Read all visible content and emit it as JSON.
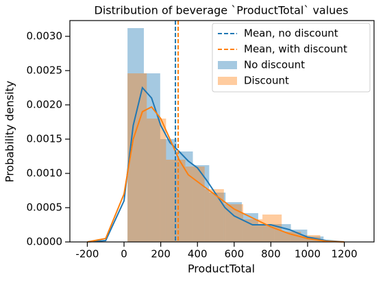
{
  "chart_data": {
    "type": "histogram",
    "title": "Distribution of beverage `ProductTotal` values",
    "xlabel": "ProductTotal",
    "ylabel": "Probability density",
    "xlim": [
      -295,
      1362
    ],
    "ylim": [
      0,
      0.00323
    ],
    "xticks": [
      -200,
      0,
      200,
      400,
      600,
      800,
      1000,
      1200
    ],
    "yticks": [
      {
        "value": 0,
        "label": "0.0000"
      },
      0.0005,
      {
        "value": 0.001,
        "label": "0.0010"
      },
      0.0015,
      {
        "value": 0.002,
        "label": "0.0020"
      },
      0.0025,
      {
        "value": 0.003,
        "label": "0.0030"
      }
    ],
    "legend": "upper right",
    "series": [
      {
        "name": "No discount",
        "color": "#1f77b4",
        "bins": [
          19,
          108,
          197,
          286,
          375,
          464,
          553,
          642,
          731,
          820,
          909,
          998,
          1087
        ],
        "values": [
          0.00312,
          0.00246,
          0.0015,
          0.00132,
          0.00112,
          0.00072,
          0.00058,
          0.00042,
          0.00026,
          0.00026,
          0.00018,
          8e-05
        ]
      },
      {
        "name": "Discount",
        "color": "#ff7f0e",
        "bins": [
          19,
          124,
          229,
          334,
          439,
          544,
          649,
          754,
          859,
          964,
          1069
        ],
        "values": [
          0.00246,
          0.0018,
          0.0012,
          0.0011,
          0.00077,
          0.00055,
          0.00033,
          0.0004,
          0.00015,
          0.0001
        ]
      }
    ],
    "kde_lines": [
      {
        "color": "#1f77b4",
        "x": [
          -200,
          -100,
          0,
          50,
          100,
          150,
          200,
          250,
          300,
          350,
          400,
          450,
          500,
          550,
          600,
          700,
          800,
          900,
          1000,
          1100,
          1200
        ],
        "values": [
          0,
          2e-05,
          0.0006,
          0.0017,
          0.00225,
          0.0021,
          0.0017,
          0.00145,
          0.00132,
          0.00118,
          0.00108,
          0.0009,
          0.0007,
          0.0005,
          0.00038,
          0.00025,
          0.00025,
          0.00018,
          7e-05,
          2e-05,
          0
        ]
      },
      {
        "color": "#ff7f0e",
        "x": [
          -200,
          -100,
          0,
          50,
          100,
          150,
          200,
          250,
          300,
          350,
          400,
          450,
          500,
          600,
          700,
          800,
          900,
          1000,
          1100,
          1200
        ],
        "values": [
          0,
          5e-05,
          0.0007,
          0.0015,
          0.0019,
          0.00197,
          0.0018,
          0.0015,
          0.0012,
          0.00098,
          0.00088,
          0.00078,
          0.00068,
          0.00048,
          0.00035,
          0.00022,
          0.00012,
          5e-05,
          1e-05,
          0
        ]
      }
    ],
    "means": [
      {
        "name": "Mean, no discount",
        "color": "#1f77b4",
        "value": 280
      },
      {
        "name": "Mean, with discount",
        "color": "#ff7f0e",
        "value": 295
      }
    ]
  }
}
